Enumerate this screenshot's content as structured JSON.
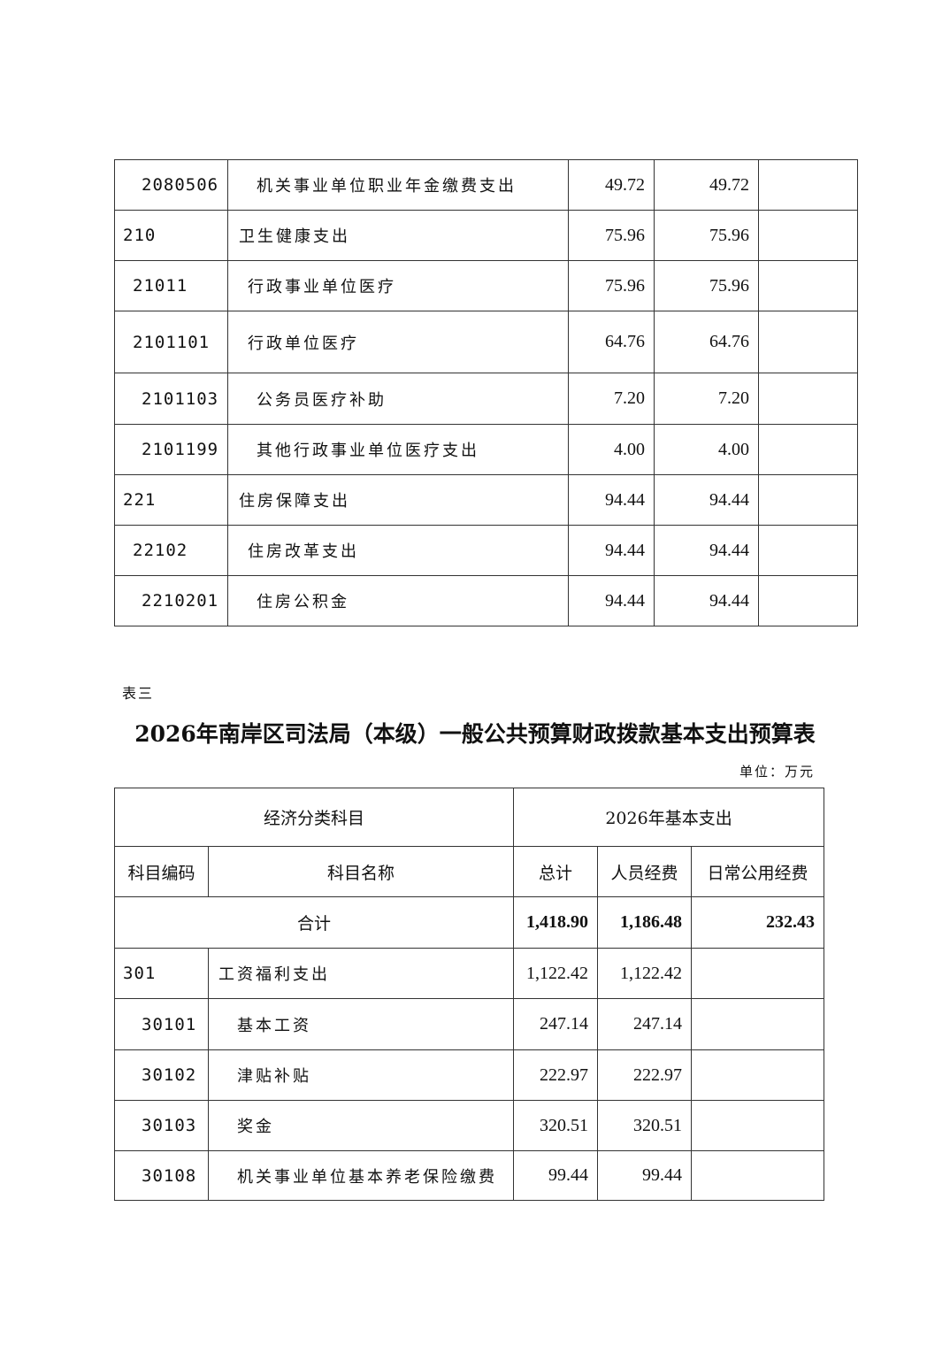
{
  "table_top": {
    "rows": [
      {
        "code": "2080506",
        "name": "机关事业单位职业年金缴费支出",
        "total": "49.72",
        "personnel": "49.72",
        "public": ""
      },
      {
        "code": "210",
        "name": "卫生健康支出",
        "total": "75.96",
        "personnel": "75.96",
        "public": ""
      },
      {
        "code": "21011",
        "name": "行政事业单位医疗",
        "total": "75.96",
        "personnel": "75.96",
        "public": ""
      },
      {
        "code": "2101101",
        "name": "行政单位医疗",
        "total": "64.76",
        "personnel": "64.76",
        "public": ""
      },
      {
        "code": "2101103",
        "name": "公务员医疗补助",
        "total": "7.20",
        "personnel": "7.20",
        "public": ""
      },
      {
        "code": "2101199",
        "name": "其他行政事业单位医疗支出",
        "total": "4.00",
        "personnel": "4.00",
        "public": ""
      },
      {
        "code": "221",
        "name": "住房保障支出",
        "total": "94.44",
        "personnel": "94.44",
        "public": ""
      },
      {
        "code": "22102",
        "name": "住房改革支出",
        "total": "94.44",
        "personnel": "94.44",
        "public": ""
      },
      {
        "code": "2210201",
        "name": "住房公积金",
        "total": "94.44",
        "personnel": "94.44",
        "public": ""
      }
    ]
  },
  "table3": {
    "label": "表三",
    "title": "2026年南岸区司法局（本级）一般公共预算财政拨款基本支出预算表",
    "unit": "单位：万元",
    "header": {
      "group_left": "经济分类科目",
      "group_right": "2026年基本支出",
      "code": "科目编码",
      "name": "科目名称",
      "total": "总计",
      "personnel": "人员经费",
      "public": "日常公用经费"
    },
    "sum": {
      "label": "合计",
      "total": "1,418.90",
      "personnel": "1,186.48",
      "public": "232.43"
    },
    "rows": [
      {
        "code": "301",
        "name": "工资福利支出",
        "total": "1,122.42",
        "personnel": "1,122.42",
        "public": ""
      },
      {
        "code": "30101",
        "name": "基本工资",
        "total": "247.14",
        "personnel": "247.14",
        "public": ""
      },
      {
        "code": "30102",
        "name": "津贴补贴",
        "total": "222.97",
        "personnel": "222.97",
        "public": ""
      },
      {
        "code": "30103",
        "name": "奖金",
        "total": "320.51",
        "personnel": "320.51",
        "public": ""
      },
      {
        "code": "30108",
        "name": "机关事业单位基本养老保险缴费",
        "total": "99.44",
        "personnel": "99.44",
        "public": ""
      }
    ]
  }
}
